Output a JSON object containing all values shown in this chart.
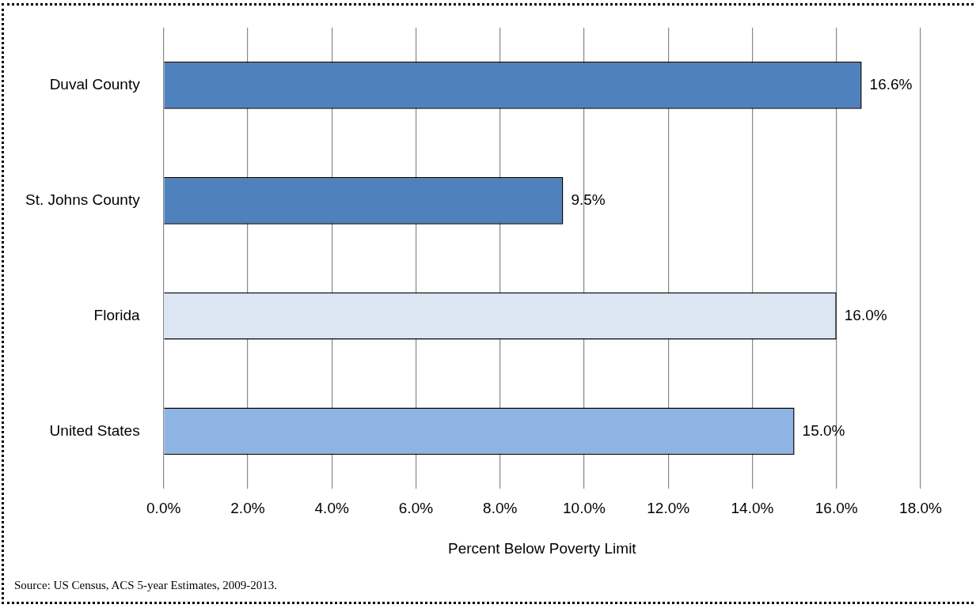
{
  "chart_data": {
    "type": "bar",
    "orientation": "horizontal",
    "categories": [
      "Duval County",
      "St. Johns County",
      "Florida",
      "United States"
    ],
    "values": [
      16.6,
      9.5,
      16.0,
      15.0
    ],
    "value_labels": [
      "16.6%",
      "9.5%",
      "16.0%",
      "15.0%"
    ],
    "colors": [
      "#4f81bd",
      "#4f81bd",
      "#dce6f2",
      "#8eb4e3"
    ],
    "xlim": [
      0,
      18
    ],
    "xticks": [
      {
        "value": 0,
        "label": "0.0%"
      },
      {
        "value": 2,
        "label": "2.0%"
      },
      {
        "value": 4,
        "label": "4.0%"
      },
      {
        "value": 6,
        "label": "6.0%"
      },
      {
        "value": 8,
        "label": "8.0%"
      },
      {
        "value": 10,
        "label": "10.0%"
      },
      {
        "value": 12,
        "label": "12.0%"
      },
      {
        "value": 14,
        "label": "14.0%"
      },
      {
        "value": 16,
        "label": "16.0%"
      },
      {
        "value": 18,
        "label": "18.0%"
      }
    ],
    "xlabel": "Percent Below Poverty Limit",
    "grid": "x",
    "annotations": [
      "Source: US Census, ACS 5-year Estimates, 2009-2013."
    ]
  }
}
